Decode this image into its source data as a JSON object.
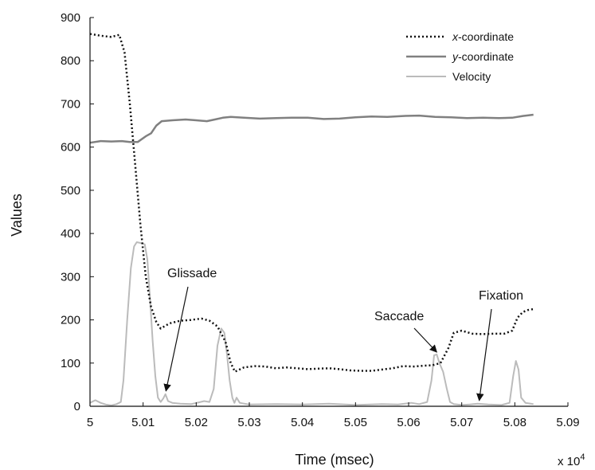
{
  "chart_data": {
    "type": "line",
    "xlabel": "Time (msec)",
    "ylabel": "Values",
    "x_multiplier_label": "x 10",
    "x_multiplier_exp": "4",
    "xlim": [
      5.0,
      5.09
    ],
    "ylim": [
      0,
      900
    ],
    "x_ticks": [
      "5",
      "5.01",
      "5.02",
      "5.03",
      "5.04",
      "5.05",
      "5.06",
      "5.07",
      "5.08",
      "5.09"
    ],
    "y_ticks": [
      "0",
      "100",
      "200",
      "300",
      "400",
      "500",
      "600",
      "700",
      "800",
      "900"
    ],
    "grid": false,
    "legend_position": "top-right",
    "legend": {
      "x_prefix": "x",
      "x_suffix": "-coordinate",
      "y_prefix": "y",
      "y_suffix": "-coordinate",
      "velocity": "Velocity"
    },
    "series": [
      {
        "key": "x",
        "style": "dotted",
        "color": "#111111",
        "points": [
          [
            5.0,
            862
          ],
          [
            5.002,
            858
          ],
          [
            5.004,
            855
          ],
          [
            5.0055,
            860
          ],
          [
            5.0065,
            820
          ],
          [
            5.0075,
            700
          ],
          [
            5.0085,
            560
          ],
          [
            5.0095,
            420
          ],
          [
            5.0105,
            300
          ],
          [
            5.0115,
            230
          ],
          [
            5.0125,
            195
          ],
          [
            5.0133,
            180
          ],
          [
            5.015,
            192
          ],
          [
            5.017,
            198
          ],
          [
            5.019,
            200
          ],
          [
            5.021,
            203
          ],
          [
            5.0225,
            198
          ],
          [
            5.024,
            185
          ],
          [
            5.0255,
            150
          ],
          [
            5.0265,
            100
          ],
          [
            5.0273,
            80
          ],
          [
            5.029,
            90
          ],
          [
            5.031,
            93
          ],
          [
            5.033,
            92
          ],
          [
            5.035,
            88
          ],
          [
            5.037,
            90
          ],
          [
            5.039,
            88
          ],
          [
            5.041,
            86
          ],
          [
            5.043,
            87
          ],
          [
            5.045,
            88
          ],
          [
            5.047,
            86
          ],
          [
            5.049,
            83
          ],
          [
            5.051,
            82
          ],
          [
            5.053,
            82
          ],
          [
            5.055,
            85
          ],
          [
            5.057,
            88
          ],
          [
            5.059,
            93
          ],
          [
            5.061,
            92
          ],
          [
            5.063,
            94
          ],
          [
            5.0645,
            95
          ],
          [
            5.066,
            100
          ],
          [
            5.0675,
            135
          ],
          [
            5.0685,
            170
          ],
          [
            5.07,
            175
          ],
          [
            5.072,
            168
          ],
          [
            5.074,
            167
          ],
          [
            5.076,
            168
          ],
          [
            5.078,
            168
          ],
          [
            5.0795,
            175
          ],
          [
            5.0805,
            205
          ],
          [
            5.0815,
            218
          ],
          [
            5.0825,
            223
          ],
          [
            5.0835,
            225
          ]
        ]
      },
      {
        "key": "y",
        "style": "solid",
        "color": "#808080",
        "points": [
          [
            5.0,
            610
          ],
          [
            5.002,
            614
          ],
          [
            5.004,
            613
          ],
          [
            5.006,
            614
          ],
          [
            5.0075,
            612
          ],
          [
            5.009,
            612
          ],
          [
            5.0105,
            625
          ],
          [
            5.0115,
            632
          ],
          [
            5.0125,
            650
          ],
          [
            5.0135,
            660
          ],
          [
            5.0155,
            662
          ],
          [
            5.018,
            664
          ],
          [
            5.02,
            662
          ],
          [
            5.022,
            660
          ],
          [
            5.0235,
            664
          ],
          [
            5.025,
            668
          ],
          [
            5.0265,
            670
          ],
          [
            5.029,
            668
          ],
          [
            5.032,
            666
          ],
          [
            5.035,
            667
          ],
          [
            5.038,
            668
          ],
          [
            5.041,
            668
          ],
          [
            5.044,
            665
          ],
          [
            5.047,
            666
          ],
          [
            5.05,
            669
          ],
          [
            5.053,
            671
          ],
          [
            5.056,
            670
          ],
          [
            5.059,
            672
          ],
          [
            5.062,
            673
          ],
          [
            5.065,
            670
          ],
          [
            5.068,
            669
          ],
          [
            5.071,
            667
          ],
          [
            5.074,
            668
          ],
          [
            5.077,
            667
          ],
          [
            5.0795,
            668
          ],
          [
            5.0815,
            672
          ],
          [
            5.0835,
            675
          ]
        ]
      },
      {
        "key": "velocity",
        "style": "solid",
        "color": "#bbbbbb",
        "points": [
          [
            5.0,
            8
          ],
          [
            5.001,
            14
          ],
          [
            5.002,
            8
          ],
          [
            5.003,
            4
          ],
          [
            5.004,
            2
          ],
          [
            5.005,
            5
          ],
          [
            5.0058,
            10
          ],
          [
            5.0063,
            60
          ],
          [
            5.007,
            200
          ],
          [
            5.0077,
            320
          ],
          [
            5.0083,
            370
          ],
          [
            5.0088,
            380
          ],
          [
            5.0095,
            378
          ],
          [
            5.0103,
            375
          ],
          [
            5.0108,
            340
          ],
          [
            5.0113,
            250
          ],
          [
            5.0118,
            150
          ],
          [
            5.0123,
            70
          ],
          [
            5.0128,
            20
          ],
          [
            5.0133,
            10
          ],
          [
            5.0138,
            18
          ],
          [
            5.0142,
            28
          ],
          [
            5.0147,
            12
          ],
          [
            5.0155,
            8
          ],
          [
            5.017,
            6
          ],
          [
            5.019,
            5
          ],
          [
            5.0205,
            9
          ],
          [
            5.0215,
            12
          ],
          [
            5.0225,
            10
          ],
          [
            5.0233,
            40
          ],
          [
            5.024,
            140
          ],
          [
            5.0247,
            180
          ],
          [
            5.0253,
            170
          ],
          [
            5.0258,
            120
          ],
          [
            5.0263,
            60
          ],
          [
            5.0268,
            20
          ],
          [
            5.0272,
            8
          ],
          [
            5.0276,
            20
          ],
          [
            5.0282,
            8
          ],
          [
            5.03,
            4
          ],
          [
            5.035,
            5
          ],
          [
            5.04,
            4
          ],
          [
            5.045,
            6
          ],
          [
            5.05,
            3
          ],
          [
            5.055,
            5
          ],
          [
            5.058,
            4
          ],
          [
            5.0605,
            8
          ],
          [
            5.062,
            5
          ],
          [
            5.0635,
            10
          ],
          [
            5.0643,
            60
          ],
          [
            5.0648,
            118
          ],
          [
            5.0653,
            120
          ],
          [
            5.0658,
            100
          ],
          [
            5.0665,
            80
          ],
          [
            5.0672,
            40
          ],
          [
            5.0678,
            10
          ],
          [
            5.0685,
            5
          ],
          [
            5.07,
            3
          ],
          [
            5.0715,
            4
          ],
          [
            5.073,
            6
          ],
          [
            5.075,
            4
          ],
          [
            5.0775,
            3
          ],
          [
            5.079,
            8
          ],
          [
            5.0797,
            70
          ],
          [
            5.0802,
            105
          ],
          [
            5.0807,
            85
          ],
          [
            5.0812,
            20
          ],
          [
            5.082,
            8
          ],
          [
            5.083,
            6
          ],
          [
            5.0835,
            5
          ]
        ]
      }
    ],
    "annotations": [
      {
        "text": "Glissade",
        "target": [
          5.0143,
          28
        ]
      },
      {
        "text": "Saccade",
        "target": [
          5.0653,
          118
        ]
      },
      {
        "text": "Fixation",
        "target": [
          5.0733,
          6
        ]
      }
    ]
  }
}
